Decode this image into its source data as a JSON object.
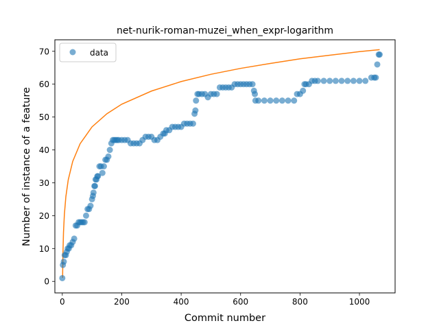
{
  "chart_data": {
    "type": "scatter",
    "title": "net-nurik-roman-muzei_when_expr-logarithm",
    "xlabel": "Commit number",
    "ylabel": "Number of instance of a feature",
    "xlim": [
      -25,
      1120
    ],
    "ylim": [
      -3.5,
      73.5
    ],
    "xticks": [
      0,
      200,
      400,
      600,
      800,
      1000
    ],
    "yticks": [
      0,
      10,
      20,
      30,
      40,
      50,
      60,
      70
    ],
    "grid": false,
    "legend": {
      "placement": "top-left",
      "entries": [
        "data"
      ]
    },
    "colors": {
      "data": "#1f77b4",
      "fit": "#ff7f0e"
    },
    "series": [
      {
        "name": "data",
        "kind": "scatter",
        "x": [
          0,
          2,
          5,
          8,
          12,
          15,
          18,
          22,
          25,
          30,
          35,
          40,
          45,
          50,
          55,
          60,
          65,
          70,
          75,
          80,
          85,
          90,
          95,
          100,
          103,
          105,
          108,
          110,
          112,
          115,
          118,
          120,
          125,
          130,
          135,
          140,
          145,
          150,
          155,
          160,
          165,
          170,
          175,
          180,
          185,
          190,
          200,
          210,
          220,
          230,
          240,
          250,
          260,
          270,
          280,
          290,
          300,
          310,
          320,
          330,
          340,
          345,
          350,
          360,
          370,
          380,
          390,
          400,
          410,
          420,
          430,
          440,
          445,
          448,
          450,
          455,
          460,
          470,
          480,
          490,
          500,
          510,
          520,
          530,
          540,
          550,
          560,
          570,
          580,
          590,
          600,
          610,
          620,
          630,
          640,
          645,
          648,
          650,
          660,
          680,
          700,
          720,
          740,
          760,
          780,
          790,
          800,
          810,
          815,
          820,
          830,
          840,
          850,
          860,
          880,
          900,
          920,
          940,
          960,
          980,
          1000,
          1020,
          1040,
          1050,
          1055,
          1060,
          1065,
          1068
        ],
        "y": [
          1,
          5,
          6,
          8,
          8,
          9,
          10,
          10,
          11,
          11,
          12,
          13,
          17,
          17,
          18,
          18,
          18,
          18,
          18,
          20,
          22,
          22,
          23,
          25,
          26,
          27,
          29,
          29,
          31,
          31,
          32,
          32,
          35,
          35,
          33,
          35,
          37,
          37,
          38,
          40,
          42,
          43,
          43,
          43,
          43,
          43,
          43,
          43,
          43,
          42,
          42,
          42,
          42,
          43,
          44,
          44,
          44,
          43,
          43,
          44,
          45,
          45,
          46,
          46,
          47,
          47,
          47,
          47,
          48,
          48,
          48,
          48,
          51,
          52,
          55,
          57,
          57,
          57,
          57,
          56,
          57,
          57,
          57,
          59,
          59,
          59,
          59,
          59,
          60,
          60,
          60,
          60,
          60,
          60,
          60,
          58,
          57,
          55,
          55,
          55,
          55,
          55,
          55,
          55,
          55,
          57,
          57,
          58,
          60,
          60,
          60,
          61,
          61,
          61,
          61,
          61,
          61,
          61,
          61,
          61,
          61,
          61,
          62,
          62,
          62,
          66,
          69,
          69
        ]
      },
      {
        "name": "",
        "kind": "line",
        "fit": "logarithmic",
        "x": [
          1,
          2,
          4,
          7,
          12,
          20,
          35,
          60,
          100,
          150,
          200,
          300,
          400,
          500,
          600,
          700,
          800,
          900,
          1000,
          1068
        ],
        "y": [
          1.1,
          8.0,
          14.9,
          20.4,
          25.8,
          30.9,
          36.5,
          41.9,
          47.0,
          51.0,
          53.9,
          57.9,
          60.8,
          63.0,
          64.8,
          66.3,
          67.7,
          68.8,
          69.9,
          70.5
        ]
      }
    ]
  }
}
